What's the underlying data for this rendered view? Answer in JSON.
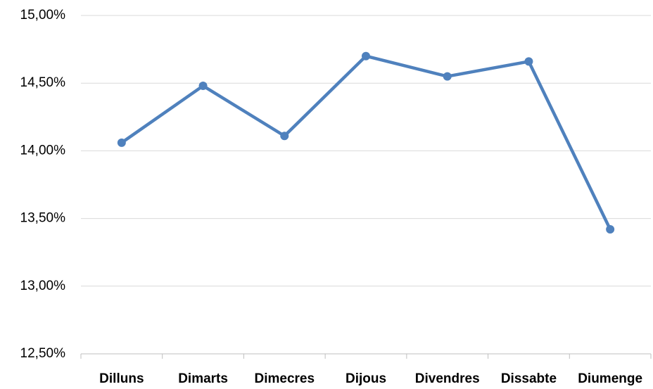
{
  "chart_data": {
    "type": "line",
    "categories": [
      "Dilluns",
      "Dimarts",
      "Dimecres",
      "Dijous",
      "Divendres",
      "Dissabte",
      "Diumenge"
    ],
    "series": [
      {
        "color": "#4f81bd",
        "values": [
          14.06,
          14.48,
          14.11,
          14.7,
          14.55,
          14.66,
          13.42
        ]
      }
    ],
    "ylim": [
      12.5,
      15
    ],
    "yticks": [
      {
        "value": 12.5,
        "label": "12,50%"
      },
      {
        "value": 13,
        "label": "13,00%"
      },
      {
        "value": 13.5,
        "label": "13,50%"
      },
      {
        "value": 14,
        "label": "14,00%"
      },
      {
        "value": 14.5,
        "label": "14,50%"
      },
      {
        "value": 15,
        "label": "15,00%"
      }
    ],
    "grid": true
  }
}
